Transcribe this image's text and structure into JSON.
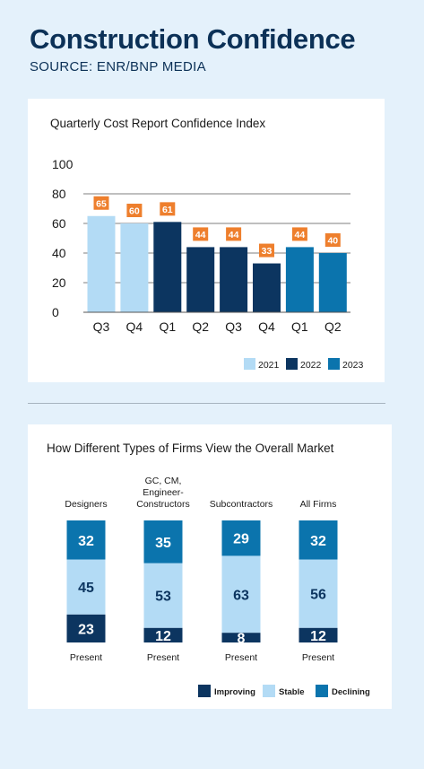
{
  "header": {
    "title": "Construction Confidence",
    "subtitle": "SOURCE: ENR/BNP MEDIA"
  },
  "colors": {
    "2021": "#b3dbf5",
    "2022": "#0c3560",
    "2023": "#0b74ad",
    "improving": "#0c3560",
    "stable": "#b3dbf5",
    "declining": "#0b74ad",
    "label_bg": "#ee7f2d",
    "grid": "#555555"
  },
  "chart_data": [
    {
      "type": "bar",
      "title": "Quarterly Cost Report Confidence Index",
      "categories": [
        "Q3",
        "Q4",
        "Q1",
        "Q2",
        "Q3",
        "Q4",
        "Q1",
        "Q2"
      ],
      "values": [
        65,
        60,
        61,
        44,
        44,
        33,
        44,
        40
      ],
      "labels": [
        "65",
        "60",
        "61",
        "44",
        "44",
        "33",
        "44",
        "40"
      ],
      "years": [
        "2021",
        "2021",
        "2022",
        "2022",
        "2022",
        "2022",
        "2023",
        "2023"
      ],
      "y_ticks": [
        "0",
        "20",
        "40",
        "60",
        "80",
        "100"
      ],
      "ylim": [
        0,
        100
      ],
      "grid": true,
      "legend": [
        "2021",
        "2022",
        "2023"
      ],
      "legend_position": "bottom-right"
    },
    {
      "type": "bar",
      "stacked": true,
      "title": "How Different Types of Firms View the Overall Market",
      "categories": [
        [
          "Designers"
        ],
        [
          "GC, CM,",
          "Engineer-",
          "Constructors"
        ],
        [
          "Subcontractors"
        ],
        [
          "All Firms"
        ]
      ],
      "period_label": "Present",
      "series": [
        {
          "name": "Improving",
          "values": [
            23,
            12,
            8,
            12
          ],
          "labels": [
            "23",
            "12",
            "8",
            "12"
          ]
        },
        {
          "name": "Stable",
          "values": [
            45,
            53,
            63,
            56
          ],
          "labels": [
            "45",
            "53",
            "63",
            "56"
          ]
        },
        {
          "name": "Declining",
          "values": [
            32,
            35,
            29,
            32
          ],
          "labels": [
            "32",
            "35",
            "29",
            "32"
          ]
        }
      ],
      "legend": [
        "Improving",
        "Stable",
        "Declining"
      ],
      "legend_position": "bottom-right"
    }
  ]
}
